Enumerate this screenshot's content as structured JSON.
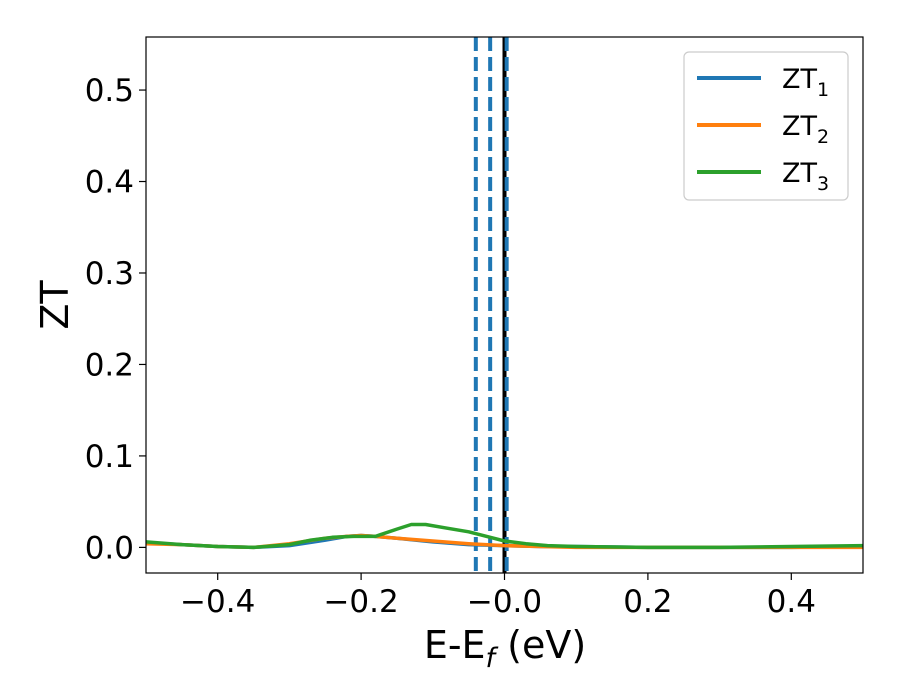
{
  "chart_data": {
    "type": "line",
    "xlabel": "E-E",
    "xlabel_sub": "f",
    "xlabel_unit": " (eV)",
    "ylabel": "ZT",
    "xlim": [
      -0.5,
      0.5
    ],
    "ylim": [
      -0.028,
      0.558
    ],
    "xticks": [
      -0.4,
      -0.2,
      0.0,
      0.2,
      0.4
    ],
    "xtick_labels": [
      "−0.4",
      "−0.2",
      "−0.0",
      "0.2",
      "0.4"
    ],
    "yticks": [
      0.0,
      0.1,
      0.2,
      0.3,
      0.4,
      0.5
    ],
    "ytick_labels": [
      "0.0",
      "0.1",
      "0.2",
      "0.3",
      "0.4",
      "0.5"
    ],
    "grid": false,
    "legend_position": "top-right",
    "series": [
      {
        "name": "ZT",
        "name_sub": "1",
        "color": "#1f77b4",
        "x": [
          -0.5,
          -0.45,
          -0.4,
          -0.35,
          -0.3,
          -0.25,
          -0.22,
          -0.2,
          -0.18,
          -0.15,
          -0.1,
          -0.05,
          0.0,
          0.05,
          0.1,
          0.2,
          0.3,
          0.4,
          0.5
        ],
        "y": [
          0.005,
          0.003,
          0.001,
          0.0,
          0.002,
          0.008,
          0.012,
          0.013,
          0.012,
          0.01,
          0.006,
          0.003,
          0.002,
          0.001,
          0.001,
          0.0,
          0.0,
          0.0,
          0.001
        ]
      },
      {
        "name": "ZT",
        "name_sub": "2",
        "color": "#ff7f0e",
        "x": [
          -0.5,
          -0.45,
          -0.4,
          -0.35,
          -0.3,
          -0.25,
          -0.22,
          -0.2,
          -0.18,
          -0.15,
          -0.1,
          -0.05,
          0.0,
          0.05,
          0.1,
          0.2,
          0.3,
          0.4,
          0.5
        ],
        "y": [
          0.004,
          0.003,
          0.001,
          0.0,
          0.004,
          0.01,
          0.012,
          0.013,
          0.012,
          0.01,
          0.007,
          0.004,
          0.002,
          0.001,
          0.0,
          0.0,
          0.0,
          0.0,
          0.0
        ]
      },
      {
        "name": "ZT",
        "name_sub": "3",
        "color": "#2ca02c",
        "x": [
          -0.5,
          -0.45,
          -0.4,
          -0.35,
          -0.3,
          -0.27,
          -0.24,
          -0.21,
          -0.18,
          -0.15,
          -0.13,
          -0.11,
          -0.08,
          -0.05,
          -0.02,
          0.0,
          0.03,
          0.06,
          0.1,
          0.2,
          0.3,
          0.4,
          0.5
        ],
        "y": [
          0.006,
          0.003,
          0.001,
          0.0,
          0.003,
          0.008,
          0.011,
          0.012,
          0.012,
          0.02,
          0.025,
          0.025,
          0.021,
          0.017,
          0.011,
          0.007,
          0.004,
          0.002,
          0.001,
          0.0,
          0.0,
          0.001,
          0.002
        ]
      }
    ],
    "vlines": [
      {
        "x": -0.04,
        "color": "#1f77b4",
        "style": "dashed"
      },
      {
        "x": -0.02,
        "color": "#1f77b4",
        "style": "dashed"
      },
      {
        "x": 0.0,
        "color": "#000000",
        "style": "solid"
      },
      {
        "x": 0.003,
        "color": "#1f77b4",
        "style": "dashed"
      }
    ]
  }
}
